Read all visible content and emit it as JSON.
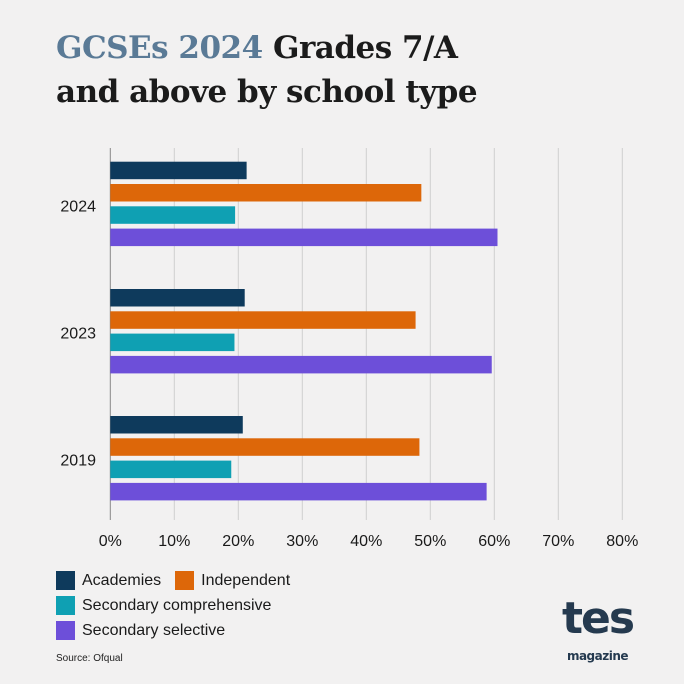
{
  "title": {
    "highlight": "GCSEs 2024",
    "rest_line1": " Grades 7/A",
    "line2": "and above by school type"
  },
  "chart_data": {
    "type": "bar",
    "orientation": "horizontal",
    "categories": [
      "2024",
      "2023",
      "2019"
    ],
    "series": [
      {
        "name": "Academies",
        "color": "#0e3a5c",
        "values": [
          21.3,
          21.0,
          20.7
        ]
      },
      {
        "name": "Independent",
        "color": "#dd6709",
        "values": [
          48.6,
          47.7,
          48.3
        ]
      },
      {
        "name": "Secondary comprehensive",
        "color": "#0fa0b3",
        "values": [
          19.5,
          19.4,
          18.9
        ]
      },
      {
        "name": "Secondary selective",
        "color": "#6d4fd9",
        "values": [
          60.5,
          59.6,
          58.8
        ]
      }
    ],
    "xlim": [
      0,
      80
    ],
    "xticks": [
      "0%",
      "10%",
      "20%",
      "30%",
      "40%",
      "50%",
      "60%",
      "70%",
      "80%"
    ],
    "grid": true,
    "legend_placement": "bottom-left"
  },
  "source": "Source: Ofqual",
  "logo": {
    "main": "tes",
    "sub": "magazine"
  }
}
